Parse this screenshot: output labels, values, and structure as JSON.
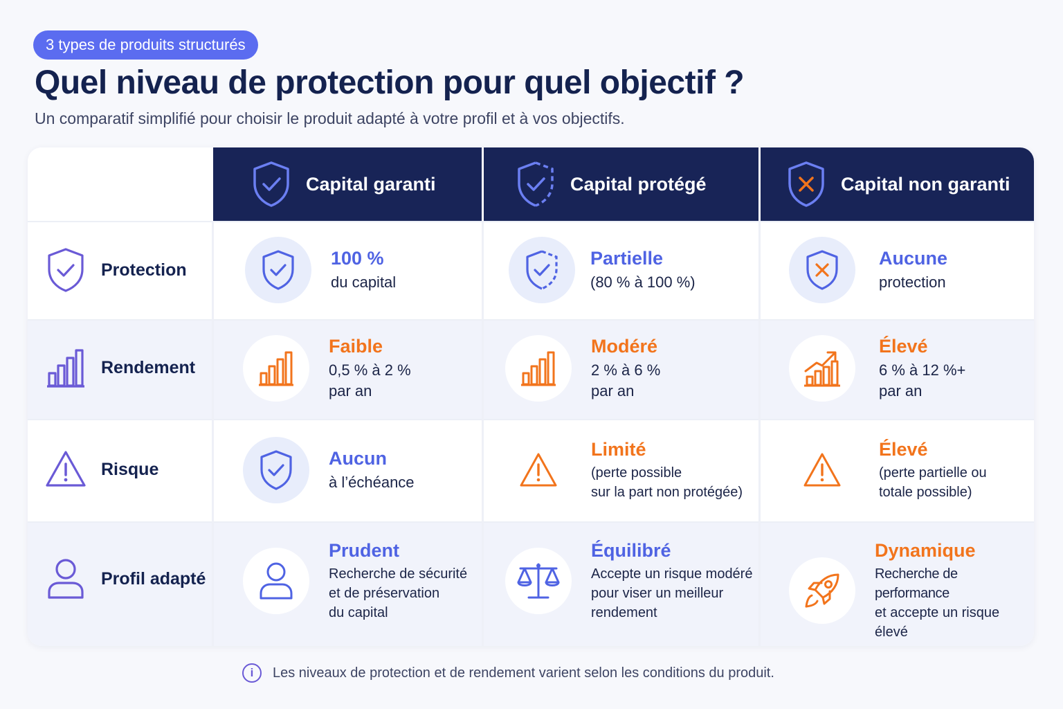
{
  "badge": "3 types de produits structurés",
  "title": "Quel niveau de protection pour quel objectif ?",
  "subtitle": "Un comparatif simplifié pour choisir le produit adapté à votre profil et à vos objectifs.",
  "columns": [
    {
      "label": "Capital garanti",
      "icon": "shield-check-icon"
    },
    {
      "label": "Capital protégé",
      "icon": "shield-partial-check-icon"
    },
    {
      "label": "Capital non garanti",
      "icon": "shield-x-icon"
    }
  ],
  "rows": [
    {
      "label": "Protection",
      "icon": "shield-check-icon",
      "cells": [
        {
          "title": "100 %",
          "lines": [
            "du capital"
          ],
          "accent": "#4f63e3"
        },
        {
          "title": "Partielle",
          "lines": [
            "(80 % à 100 %)"
          ],
          "accent": "#4f63e3"
        },
        {
          "title": "Aucune",
          "lines": [
            "protection"
          ],
          "accent": "#4f63e3"
        }
      ]
    },
    {
      "label": "Rendement",
      "icon": "bar-chart-icon",
      "cells": [
        {
          "title": "Faible",
          "lines": [
            "0,5 % à 2 %",
            "par an"
          ],
          "accent": "#f2741c"
        },
        {
          "title": "Modéré",
          "lines": [
            "2 % à 6 %",
            "par an"
          ],
          "accent": "#f2741c"
        },
        {
          "title": "Élevé",
          "lines": [
            "6 % à 12 %+",
            "par an"
          ],
          "accent": "#f2741c"
        }
      ]
    },
    {
      "label": "Risque",
      "icon": "warning-icon",
      "cells": [
        {
          "title": "Aucun",
          "lines": [
            "à l’échéance"
          ],
          "accent": "#4f63e3"
        },
        {
          "title": "Limité",
          "lines": [
            "(perte possible",
            "sur la part non protégée)"
          ],
          "accent": "#f2741c"
        },
        {
          "title": "Élevé",
          "lines": [
            "(perte partielle ou",
            "totale possible)"
          ],
          "accent": "#f2741c"
        }
      ]
    },
    {
      "label": "Profil adapté",
      "icon": "user-icon",
      "cells": [
        {
          "title": "Prudent",
          "lines": [
            "Recherche de sécurité",
            "et de préservation",
            "du capital"
          ],
          "accent": "#4f63e3"
        },
        {
          "title": "Équilibré",
          "lines": [
            "Accepte un risque modéré",
            "pour viser un meilleur",
            "rendement"
          ],
          "accent": "#4f63e3"
        },
        {
          "title": "Dynamique",
          "lines": [
            "Recherche de performance",
            "et accepte un risque",
            "élevé"
          ],
          "accent": "#f2741c"
        }
      ]
    }
  ],
  "footnote": "Les niveaux de protection et de rendement varient selon les conditions du produit.",
  "colors": {
    "navy": "#182457",
    "blue": "#4f63e3",
    "orange": "#f2741c",
    "purple": "#6a5ad6",
    "badge": "#5b6cf0"
  }
}
